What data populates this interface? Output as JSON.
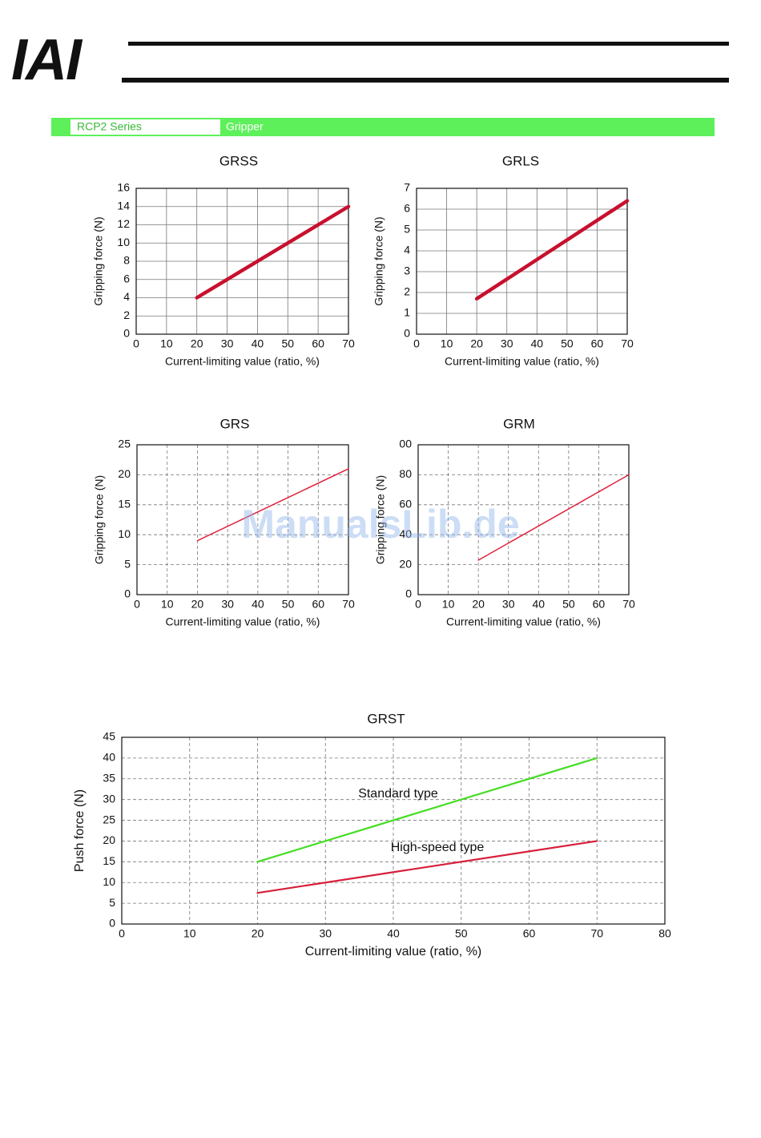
{
  "header": {
    "logo": "IAI",
    "series": "RCP2 Series",
    "section": "Gripper"
  },
  "watermark": "ManualsLib.de",
  "chart_data": [
    {
      "type": "line",
      "title": "GRSS",
      "xlabel": "Current-limiting value (ratio, %)",
      "ylabel": "Gripping force (N)",
      "x": [
        20,
        70
      ],
      "values": [
        4,
        14
      ],
      "color": "#c8102e",
      "xlim": [
        0,
        70
      ],
      "xticks": [
        0,
        10,
        20,
        30,
        40,
        50,
        60,
        70
      ],
      "ylim": [
        0,
        16
      ],
      "yticks": [
        0,
        2,
        4,
        6,
        8,
        10,
        12,
        14,
        16
      ],
      "grid": true,
      "grid_style": "solid"
    },
    {
      "type": "line",
      "title": "GRLS",
      "xlabel": "Current-limiting value (ratio, %)",
      "ylabel": "Gripping force (N)",
      "x": [
        20,
        70
      ],
      "values": [
        1.7,
        6.4
      ],
      "color": "#c8102e",
      "xlim": [
        0,
        70
      ],
      "xticks": [
        0,
        10,
        20,
        30,
        40,
        50,
        60,
        70
      ],
      "ylim": [
        0,
        7
      ],
      "yticks": [
        0,
        1,
        2,
        3,
        4,
        5,
        6,
        7
      ],
      "grid": true,
      "grid_style": "solid"
    },
    {
      "type": "line",
      "title": "GRS",
      "xlabel": "Current-limiting value (ratio, %)",
      "ylabel": "Gripping force (N)",
      "x": [
        20,
        70
      ],
      "values": [
        9,
        21
      ],
      "color": "#e0203a",
      "xlim": [
        0,
        70
      ],
      "xticks": [
        0,
        10,
        20,
        30,
        40,
        50,
        60,
        70
      ],
      "ylim": [
        0,
        25
      ],
      "yticks": [
        0,
        5,
        10,
        15,
        20,
        25
      ],
      "grid": true,
      "grid_style": "dashed"
    },
    {
      "type": "line",
      "title": "GRM",
      "xlabel": "Current-limiting value (ratio, %)",
      "ylabel": "Gripping force (N)",
      "x": [
        20,
        70
      ],
      "values": [
        23,
        80
      ],
      "color": "#e0203a",
      "xlim": [
        0,
        70
      ],
      "xticks": [
        0,
        10,
        20,
        30,
        40,
        50,
        60,
        70
      ],
      "ylim": [
        0,
        100
      ],
      "yticks": [
        0,
        20,
        40,
        60,
        80,
        {
          "value": 100,
          "label": "00"
        }
      ],
      "grid": true,
      "grid_style": "dashed"
    },
    {
      "type": "line",
      "title": "GRST",
      "xlabel": "Current-limiting value (ratio, %)",
      "ylabel": "Push force (N)",
      "x": [
        20,
        70
      ],
      "series": [
        {
          "name": "Standard type",
          "color": "#44dd22",
          "values": [
            15,
            40
          ]
        },
        {
          "name": "High-speed type",
          "color": "#d81e3a",
          "values": [
            7.5,
            20
          ]
        }
      ],
      "xlim": [
        0,
        80
      ],
      "xticks": [
        0,
        10,
        20,
        30,
        40,
        50,
        60,
        70,
        80
      ],
      "ylim": [
        0,
        45
      ],
      "yticks": [
        0,
        5,
        10,
        15,
        20,
        25,
        30,
        35,
        40,
        45
      ],
      "grid": true,
      "grid_style": "dashed"
    }
  ]
}
